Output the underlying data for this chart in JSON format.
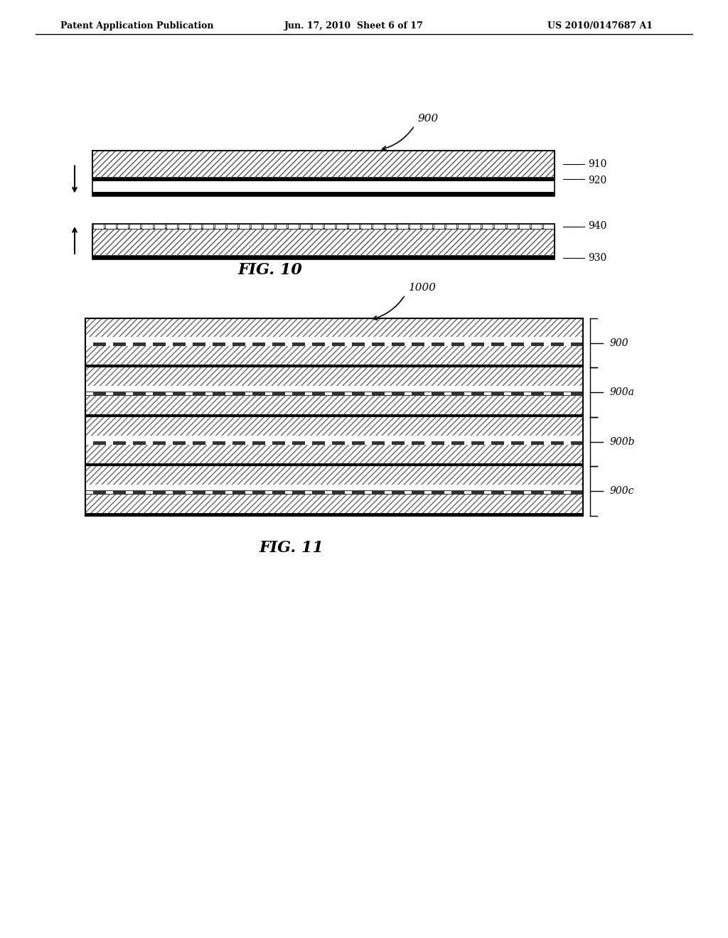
{
  "bg_color": "#ffffff",
  "text_color": "#000000",
  "header_left": "Patent Application Publication",
  "header_mid": "Jun. 17, 2010  Sheet 6 of 17",
  "header_right": "US 2010/0147687 A1",
  "fig10_label": "FIG. 10",
  "fig11_label": "FIG. 11",
  "fig10_ref": "900",
  "fig11_ref": "1000",
  "fig10_labels": [
    "910",
    "920",
    "940",
    "930"
  ],
  "fig11_labels": [
    "900",
    "900a",
    "900b",
    "900c"
  ]
}
